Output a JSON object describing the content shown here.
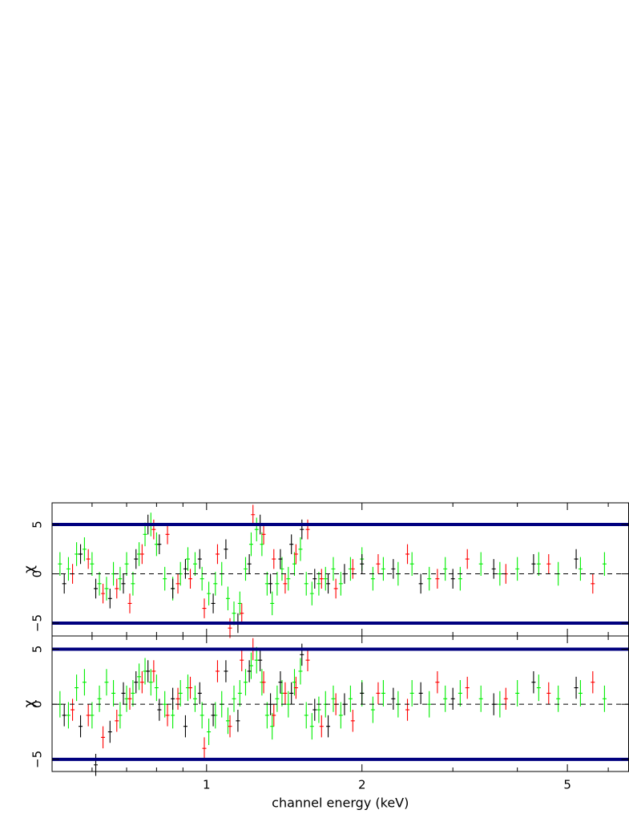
{
  "chart_data": [
    {
      "type": "errorbar",
      "ylabel": "χ",
      "xscale": "log",
      "xlim": [
        0.502,
        6.57
      ],
      "ylim": [
        -6.3,
        7.2
      ],
      "xticks": [
        1,
        2,
        5
      ],
      "show_xtick_labels": false,
      "xminor": [
        0.6,
        0.7,
        0.8,
        0.9,
        3,
        4,
        6
      ],
      "yticks": [
        {
          "value": -5,
          "label": "−5"
        },
        0,
        5
      ],
      "reference_lines": [
        5,
        -5
      ],
      "reference_color": "#00007f",
      "dashed_line": 0,
      "series": [
        {
          "color": "#00ee00",
          "yerr": 1.2,
          "x": [
            0.52,
            0.54,
            0.56,
            0.58,
            0.6,
            0.62,
            0.64,
            0.66,
            0.68,
            0.7,
            0.72,
            0.74,
            0.76,
            0.78,
            0.8,
            0.83,
            0.86,
            0.89,
            0.92,
            0.95,
            0.98,
            1.01,
            1.04,
            1.07,
            1.1,
            1.13,
            1.16,
            1.19,
            1.22,
            1.25,
            1.28,
            1.31,
            1.34,
            1.37,
            1.4,
            1.44,
            1.48,
            1.52,
            1.56,
            1.6,
            1.65,
            1.7,
            1.76,
            1.82,
            1.9,
            2.0,
            2.1,
            2.2,
            2.35,
            2.5,
            2.7,
            2.9,
            3.1,
            3.4,
            3.7,
            4.0,
            4.4,
            4.8,
            5.3,
            5.9
          ],
          "values": [
            1,
            0.5,
            2,
            2.5,
            1,
            -1,
            -1.5,
            0,
            -0.5,
            1,
            -1,
            2,
            4,
            5,
            3,
            -0.5,
            -1.5,
            0,
            1.5,
            1,
            -0.5,
            -2,
            -1,
            0,
            -2.5,
            -4,
            -3,
            0.5,
            3,
            4.5,
            3,
            -1,
            -3,
            -1,
            0.5,
            -0.5,
            1,
            2.5,
            -1,
            -2,
            -1,
            -0.5,
            0.5,
            -1,
            0.5,
            1.5,
            -0.5,
            0.5,
            0,
            1,
            -0.5,
            0.5,
            -0.5,
            1,
            0,
            0.5,
            1,
            0,
            0.5,
            1
          ]
        },
        {
          "color": "#000000",
          "yerr": 1,
          "x": [
            0.53,
            0.57,
            0.61,
            0.65,
            0.69,
            0.73,
            0.77,
            0.81,
            0.86,
            0.91,
            0.97,
            1.03,
            1.09,
            1.15,
            1.21,
            1.27,
            1.33,
            1.39,
            1.46,
            1.53,
            1.62,
            1.72,
            1.85,
            2.0,
            2.3,
            2.6,
            3.0,
            3.6,
            4.3,
            5.2
          ],
          "values": [
            -1,
            2,
            -1.5,
            -2.5,
            -1,
            1.5,
            5,
            3,
            -1.5,
            0.5,
            1.5,
            -3,
            2.5,
            -5,
            1,
            5,
            -1,
            1.5,
            3,
            4.5,
            -0.5,
            -1,
            0,
            1,
            0.5,
            -1,
            -0.5,
            0.5,
            1,
            1.5
          ]
        },
        {
          "color": "#ff0000",
          "yerr": 1,
          "x": [
            0.55,
            0.59,
            0.63,
            0.67,
            0.71,
            0.75,
            0.79,
            0.84,
            0.88,
            0.93,
            0.99,
            1.05,
            1.11,
            1.17,
            1.23,
            1.29,
            1.35,
            1.42,
            1.49,
            1.57,
            1.67,
            1.78,
            1.92,
            2.15,
            2.45,
            2.8,
            3.2,
            3.8,
            4.6,
            5.6
          ],
          "values": [
            0,
            1.5,
            -2,
            -1.5,
            -3,
            2,
            4.5,
            4,
            -1,
            -0.5,
            -3.5,
            2,
            -5.5,
            -4,
            6,
            4,
            1.5,
            -1,
            2,
            4.5,
            -0.5,
            -1.5,
            0.5,
            1,
            2,
            -0.5,
            1.5,
            0,
            1,
            -1
          ]
        }
      ]
    },
    {
      "type": "errorbar",
      "ylabel": "χ",
      "xlabel": "channel energy (keV)",
      "xscale": "log",
      "xlim": [
        0.502,
        6.57
      ],
      "ylim": [
        -6.1,
        6.2
      ],
      "xticks": [
        1,
        2,
        5
      ],
      "show_xtick_labels": true,
      "xminor": [
        0.6,
        0.7,
        0.8,
        0.9,
        3,
        4,
        6
      ],
      "yticks": [
        {
          "value": -5,
          "label": "−5"
        },
        0,
        5
      ],
      "reference_lines": [
        5,
        -5
      ],
      "reference_color": "#00007f",
      "dashed_line": 0,
      "series": [
        {
          "color": "#00ee00",
          "yerr": 1.2,
          "x": [
            0.52,
            0.54,
            0.56,
            0.58,
            0.6,
            0.62,
            0.64,
            0.66,
            0.68,
            0.7,
            0.72,
            0.74,
            0.76,
            0.78,
            0.8,
            0.83,
            0.86,
            0.89,
            0.92,
            0.95,
            0.98,
            1.01,
            1.04,
            1.07,
            1.1,
            1.13,
            1.16,
            1.19,
            1.22,
            1.25,
            1.28,
            1.31,
            1.34,
            1.37,
            1.4,
            1.44,
            1.48,
            1.52,
            1.56,
            1.6,
            1.65,
            1.7,
            1.76,
            1.82,
            1.9,
            2.0,
            2.1,
            2.2,
            2.35,
            2.5,
            2.7,
            2.9,
            3.1,
            3.4,
            3.7,
            4.0,
            4.4,
            4.8,
            5.3,
            5.9
          ],
          "values": [
            0,
            -1,
            1.5,
            2,
            -1,
            0.5,
            2,
            1,
            -1,
            0.5,
            1,
            2.5,
            3,
            2,
            1.5,
            0,
            -1,
            1,
            1.5,
            0.5,
            -1,
            -2.5,
            -1,
            0,
            -1.5,
            0.5,
            1,
            2,
            3.5,
            4,
            2,
            -1,
            -2,
            0.5,
            1,
            0,
            2,
            3,
            -1,
            -2,
            -0.5,
            0,
            0.5,
            -1,
            0.5,
            1,
            -0.5,
            1,
            0,
            1,
            0,
            0.5,
            1,
            0.5,
            0,
            1,
            1.5,
            0.5,
            1,
            0.5
          ]
        },
        {
          "color": "#000000",
          "yerr": 1,
          "x": [
            0.53,
            0.57,
            0.61,
            0.65,
            0.69,
            0.73,
            0.77,
            0.81,
            0.86,
            0.91,
            0.97,
            1.03,
            1.09,
            1.15,
            1.21,
            1.27,
            1.33,
            1.39,
            1.46,
            1.53,
            1.62,
            1.72,
            1.85,
            2.0,
            2.3,
            2.6,
            3.0,
            3.6,
            4.3,
            5.2
          ],
          "values": [
            -1,
            -2,
            -5.5,
            -2.5,
            1,
            2,
            3,
            -0.5,
            0.5,
            -2,
            1,
            -1,
            3,
            -1.5,
            3,
            4,
            0,
            2,
            1,
            4.5,
            -0.5,
            -2,
            0,
            1,
            0.5,
            1,
            0.5,
            0,
            2,
            1.5
          ]
        },
        {
          "color": "#ff0000",
          "yerr": 1,
          "x": [
            0.55,
            0.59,
            0.63,
            0.67,
            0.71,
            0.75,
            0.79,
            0.84,
            0.88,
            0.93,
            0.99,
            1.05,
            1.11,
            1.17,
            1.23,
            1.29,
            1.35,
            1.42,
            1.49,
            1.57,
            1.67,
            1.78,
            1.92,
            2.15,
            2.45,
            2.8,
            3.2,
            3.8,
            4.6,
            5.6
          ],
          "values": [
            -0.5,
            -1,
            -3,
            -1.5,
            0.5,
            2,
            3,
            -1,
            0.5,
            1.5,
            -4,
            3,
            -2,
            4,
            5,
            2,
            -1,
            1,
            1.5,
            4,
            -2,
            0,
            -1.5,
            1,
            -0.5,
            2,
            1.5,
            0.5,
            1,
            2
          ]
        }
      ]
    }
  ]
}
